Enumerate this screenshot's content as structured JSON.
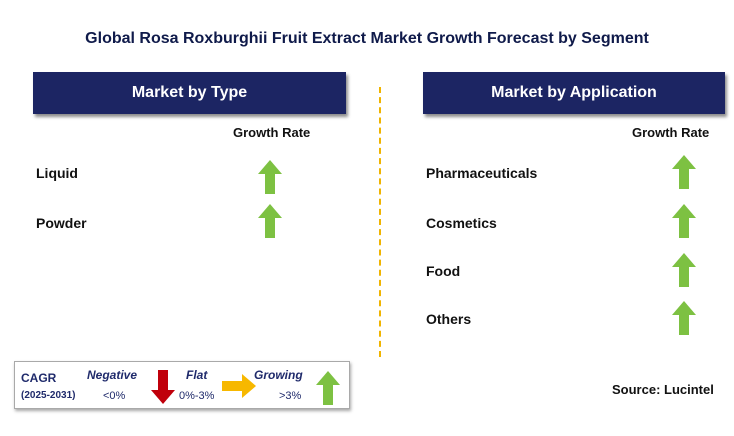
{
  "title": "Global Rosa Roxburghii Fruit Extract Market Growth Forecast by Segment",
  "colors": {
    "header_bg": "#1c2563",
    "arrow_green": "#7dc142",
    "arrow_red": "#c0000b",
    "arrow_yellow": "#f7b800",
    "divider": "#f0b400"
  },
  "left_panel": {
    "header": "Market by Type",
    "growth_rate_label": "Growth Rate",
    "segments": [
      {
        "label": "Liquid",
        "trend": "growing"
      },
      {
        "label": "Powder",
        "trend": "growing"
      }
    ]
  },
  "right_panel": {
    "header": "Market by Application",
    "growth_rate_label": "Growth Rate",
    "segments": [
      {
        "label": "Pharmaceuticals",
        "trend": "growing"
      },
      {
        "label": "Cosmetics",
        "trend": "growing"
      },
      {
        "label": "Food",
        "trend": "growing"
      },
      {
        "label": "Others",
        "trend": "growing"
      }
    ]
  },
  "legend": {
    "cagr": "CAGR",
    "period": "(2025-2031)",
    "negative": {
      "label": "Negative",
      "value": "<0%",
      "icon": "red-down-arrow-icon"
    },
    "flat": {
      "label": "Flat",
      "value": "0%-3%",
      "icon": "yellow-right-arrow-icon"
    },
    "growing": {
      "label": "Growing",
      "value": ">3%",
      "icon": "green-up-arrow-icon"
    }
  },
  "source": "Source: Lucintel"
}
